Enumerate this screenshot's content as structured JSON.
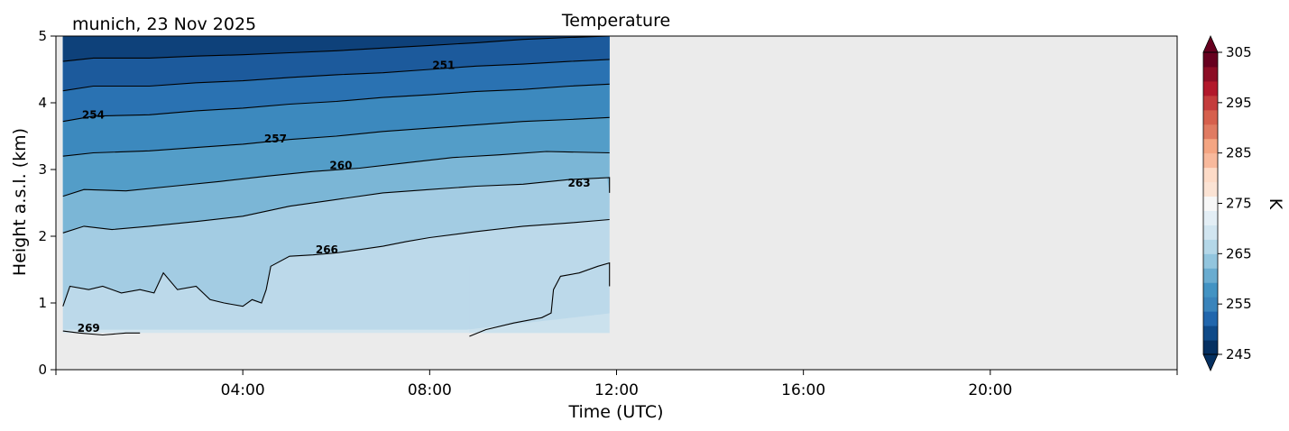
{
  "chart_data": {
    "type": "heatmap",
    "title": "Temperature",
    "subtitle": "munich, 23 Nov 2025",
    "xlabel": "Time (UTC)",
    "ylabel": "Height a.s.l. (km)",
    "xlim_hours": [
      0,
      24
    ],
    "ylim_km": [
      0,
      5
    ],
    "x_ticks": [
      {
        "hour": 4,
        "label": "04:00"
      },
      {
        "hour": 8,
        "label": "08:00"
      },
      {
        "hour": 12,
        "label": "12:00"
      },
      {
        "hour": 16,
        "label": "16:00"
      },
      {
        "hour": 20,
        "label": "20:00"
      }
    ],
    "y_ticks": [
      {
        "km": 0,
        "label": "0"
      },
      {
        "km": 1,
        "label": "1"
      },
      {
        "km": 2,
        "label": "2"
      },
      {
        "km": 3,
        "label": "3"
      },
      {
        "km": 4,
        "label": "4"
      },
      {
        "km": 5,
        "label": "5"
      }
    ],
    "data_extent": {
      "x_hours": [
        0.15,
        11.85
      ],
      "y_km": [
        0.55,
        5.0
      ]
    },
    "background_color": "#ebebeb",
    "contour_lines": [
      {
        "level": 266,
        "points": [
          [
            0.15,
            0.95
          ],
          [
            0.3,
            1.25
          ],
          [
            0.7,
            1.2
          ],
          [
            1.0,
            1.25
          ],
          [
            1.4,
            1.15
          ],
          [
            1.8,
            1.2
          ],
          [
            2.1,
            1.15
          ],
          [
            2.3,
            1.45
          ],
          [
            2.6,
            1.2
          ],
          [
            3.0,
            1.25
          ],
          [
            3.3,
            1.05
          ],
          [
            3.6,
            1.0
          ],
          [
            4.0,
            0.95
          ],
          [
            4.2,
            1.05
          ],
          [
            4.4,
            1.0
          ],
          [
            4.5,
            1.2
          ],
          [
            4.6,
            1.55
          ],
          [
            5.0,
            1.7
          ],
          [
            5.5,
            1.72
          ],
          [
            6.0,
            1.75
          ],
          [
            6.5,
            1.8
          ],
          [
            7.0,
            1.85
          ],
          [
            7.5,
            1.92
          ],
          [
            8.0,
            1.98
          ],
          [
            9.0,
            2.07
          ],
          [
            10.0,
            2.15
          ],
          [
            11.0,
            2.2
          ],
          [
            11.85,
            2.25
          ]
        ],
        "label_at": [
          5.8,
          1.8
        ]
      },
      {
        "level": 263,
        "points": [
          [
            0.15,
            2.05
          ],
          [
            0.6,
            2.15
          ],
          [
            1.2,
            2.1
          ],
          [
            2.0,
            2.15
          ],
          [
            3.0,
            2.22
          ],
          [
            4.0,
            2.3
          ],
          [
            5.0,
            2.45
          ],
          [
            6.0,
            2.55
          ],
          [
            7.0,
            2.65
          ],
          [
            8.0,
            2.7
          ],
          [
            9.0,
            2.75
          ],
          [
            10.0,
            2.78
          ],
          [
            11.0,
            2.85
          ],
          [
            11.85,
            2.88
          ],
          [
            11.85,
            2.65
          ]
        ],
        "label_at": [
          11.2,
          2.8
        ]
      },
      {
        "level": 260,
        "points": [
          [
            0.15,
            2.6
          ],
          [
            0.6,
            2.7
          ],
          [
            1.5,
            2.68
          ],
          [
            2.5,
            2.75
          ],
          [
            3.5,
            2.82
          ],
          [
            4.5,
            2.9
          ],
          [
            5.5,
            2.97
          ],
          [
            6.5,
            3.02
          ],
          [
            7.5,
            3.1
          ],
          [
            8.5,
            3.18
          ],
          [
            9.5,
            3.22
          ],
          [
            10.5,
            3.27
          ],
          [
            11.85,
            3.25
          ]
        ],
        "label_at": [
          6.1,
          3.06
        ]
      },
      {
        "level": 257,
        "points": [
          [
            0.15,
            3.2
          ],
          [
            0.8,
            3.25
          ],
          [
            2.0,
            3.28
          ],
          [
            3.0,
            3.33
          ],
          [
            4.0,
            3.38
          ],
          [
            5.0,
            3.45
          ],
          [
            6.0,
            3.5
          ],
          [
            7.0,
            3.57
          ],
          [
            8.0,
            3.62
          ],
          [
            9.0,
            3.67
          ],
          [
            10.0,
            3.72
          ],
          [
            11.0,
            3.75
          ],
          [
            11.85,
            3.78
          ]
        ],
        "label_at": [
          4.7,
          3.46
        ]
      },
      {
        "level": 254,
        "points": [
          [
            0.15,
            3.72
          ],
          [
            0.8,
            3.8
          ],
          [
            2.0,
            3.82
          ],
          [
            3.0,
            3.88
          ],
          [
            4.0,
            3.92
          ],
          [
            5.0,
            3.98
          ],
          [
            6.0,
            4.02
          ],
          [
            7.0,
            4.08
          ],
          [
            8.0,
            4.12
          ],
          [
            9.0,
            4.17
          ],
          [
            10.0,
            4.2
          ],
          [
            11.0,
            4.25
          ],
          [
            11.85,
            4.28
          ]
        ],
        "label_at": [
          0.8,
          3.82
        ]
      },
      {
        "level": 251,
        "points": [
          [
            0.15,
            4.18
          ],
          [
            0.8,
            4.25
          ],
          [
            2.0,
            4.25
          ],
          [
            3.0,
            4.3
          ],
          [
            4.0,
            4.33
          ],
          [
            5.0,
            4.38
          ],
          [
            6.0,
            4.42
          ],
          [
            7.0,
            4.45
          ],
          [
            8.0,
            4.5
          ],
          [
            9.0,
            4.55
          ],
          [
            10.0,
            4.58
          ],
          [
            11.0,
            4.62
          ],
          [
            11.85,
            4.65
          ]
        ],
        "label_at": [
          8.3,
          4.56
        ]
      },
      {
        "level": 248,
        "points": [
          [
            0.15,
            4.62
          ],
          [
            0.8,
            4.67
          ],
          [
            2.0,
            4.67
          ],
          [
            3.0,
            4.7
          ],
          [
            4.0,
            4.72
          ],
          [
            5.0,
            4.75
          ],
          [
            6.0,
            4.78
          ],
          [
            7.0,
            4.82
          ],
          [
            8.0,
            4.86
          ],
          [
            9.0,
            4.9
          ],
          [
            10.0,
            4.95
          ],
          [
            11.0,
            4.98
          ],
          [
            11.85,
            5.0
          ]
        ],
        "label_at": null
      },
      {
        "level": 269,
        "points": [
          [
            0.15,
            0.58
          ],
          [
            0.5,
            0.55
          ],
          [
            1.0,
            0.52
          ],
          [
            1.5,
            0.55
          ],
          [
            1.8,
            0.55
          ]
        ],
        "label_at": [
          0.7,
          0.62
        ]
      },
      {
        "level": 269,
        "points": [
          [
            8.85,
            0.5
          ],
          [
            9.2,
            0.6
          ],
          [
            9.8,
            0.7
          ],
          [
            10.4,
            0.78
          ],
          [
            10.6,
            0.85
          ],
          [
            10.65,
            1.2
          ],
          [
            10.8,
            1.4
          ],
          [
            11.2,
            1.45
          ],
          [
            11.6,
            1.55
          ],
          [
            11.85,
            1.6
          ],
          [
            11.85,
            1.25
          ]
        ],
        "label_at": null
      }
    ],
    "fill_bands": [
      {
        "below_km": 0.55,
        "color": "#d3e5ef"
      },
      {
        "from_level": 269,
        "to_level": 266,
        "color": "#bcd9ea"
      },
      {
        "from_level": 266,
        "to_level": 263,
        "color": "#a3cce3"
      },
      {
        "from_level": 263,
        "to_level": 260,
        "color": "#7bb6d6"
      },
      {
        "from_level": 260,
        "to_level": 257,
        "color": "#539dc8"
      },
      {
        "from_level": 257,
        "to_level": 254,
        "color": "#3c89be"
      },
      {
        "from_level": 254,
        "to_level": 251,
        "color": "#2a72b2"
      },
      {
        "from_level": 251,
        "to_level": 248,
        "color": "#1c5a9c"
      },
      {
        "from_level": 248,
        "to_level": 245,
        "color": "#0e417a"
      }
    ],
    "colorbar": {
      "label": "K",
      "vmin": 245,
      "vmax": 305,
      "ticks": [
        245,
        255,
        265,
        275,
        285,
        295,
        305
      ],
      "tick_labels": [
        "245",
        "255",
        "265",
        "275",
        "285",
        "295",
        "305"
      ],
      "extend": "both",
      "colors": [
        "#053061",
        "#0f4a88",
        "#2166ac",
        "#3a84bb",
        "#4393c3",
        "#6aacd0",
        "#92c5de",
        "#b4d7e8",
        "#d1e5f0",
        "#e3eef5",
        "#f7f7f7",
        "#fbe3d4",
        "#fddbc7",
        "#f8b99c",
        "#f4a582",
        "#e07b62",
        "#d6604d",
        "#c43c3c",
        "#b2182b",
        "#8c0d25",
        "#67001f"
      ]
    }
  }
}
